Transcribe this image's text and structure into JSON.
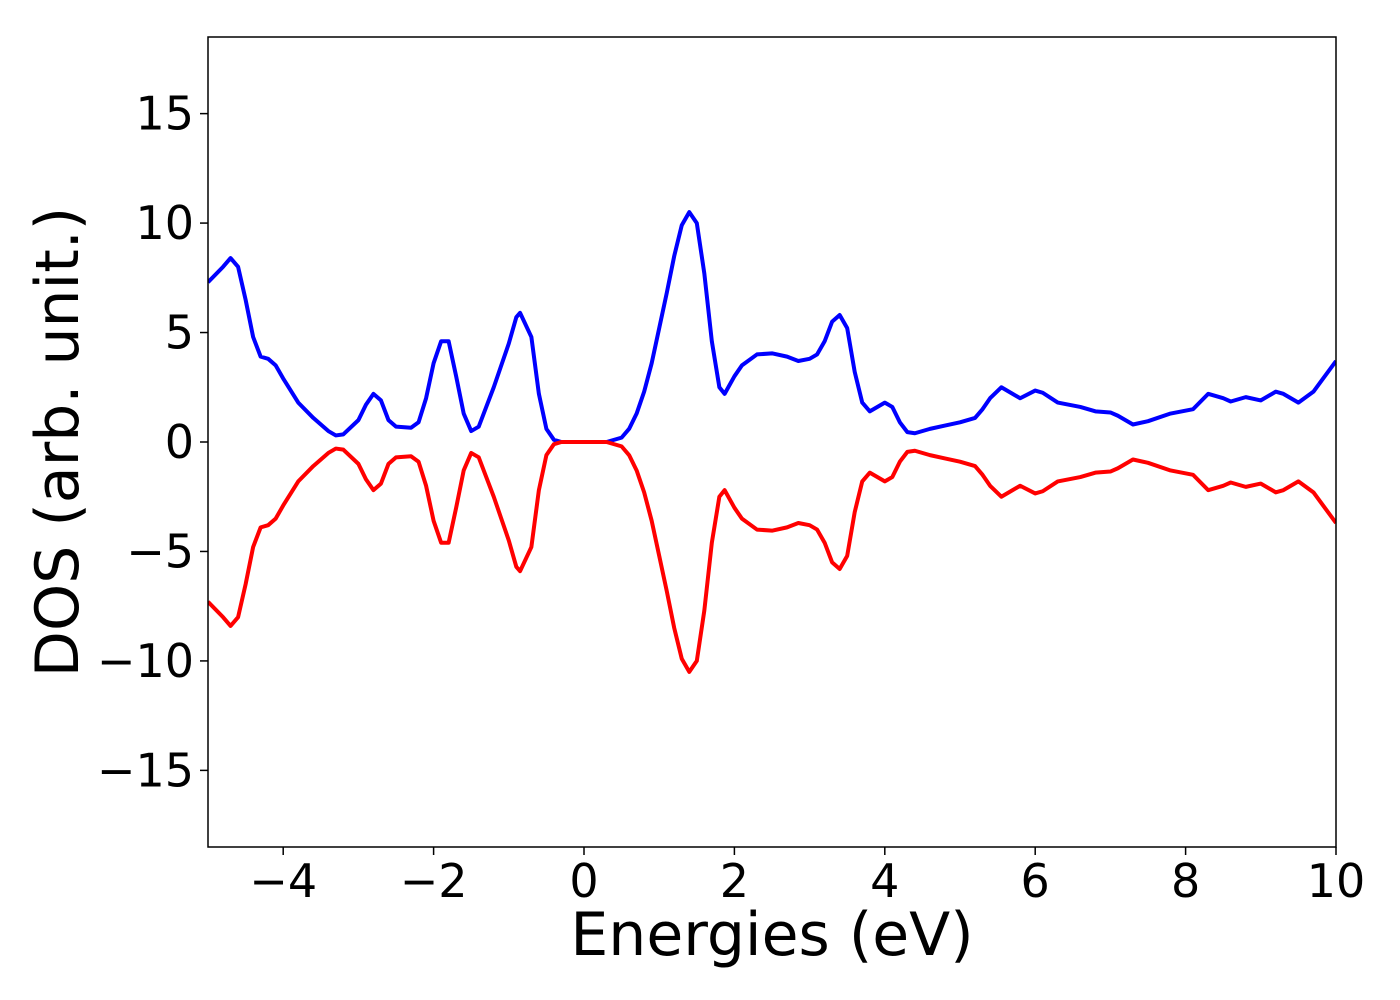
{
  "chart_data": {
    "type": "line",
    "x_label": "Energies (eV)",
    "y_label": "DOS (arb. unit.)",
    "x": [
      -5,
      -4.8,
      -4.7,
      -4.6,
      -4.5,
      -4.4,
      -4.3,
      -4.2,
      -4.1,
      -4.0,
      -3.8,
      -3.6,
      -3.4,
      -3.3,
      -3.2,
      -3.0,
      -2.9,
      -2.8,
      -2.7,
      -2.6,
      -2.5,
      -2.3,
      -2.2,
      -2.1,
      -2.0,
      -1.9,
      -1.8,
      -1.7,
      -1.6,
      -1.5,
      -1.4,
      -1.3,
      -1.2,
      -1.1,
      -1.0,
      -0.9,
      -0.85,
      -0.7,
      -0.6,
      -0.5,
      -0.4,
      -0.3,
      0,
      0.3,
      0.5,
      0.6,
      0.7,
      0.8,
      0.9,
      1.0,
      1.1,
      1.2,
      1.3,
      1.4,
      1.5,
      1.6,
      1.7,
      1.8,
      1.87,
      2.0,
      2.1,
      2.3,
      2.5,
      2.7,
      2.85,
      3.0,
      3.1,
      3.2,
      3.3,
      3.4,
      3.5,
      3.6,
      3.7,
      3.8,
      3.9,
      4.0,
      4.1,
      4.2,
      4.3,
      4.4,
      4.6,
      4.8,
      5.0,
      5.2,
      5.3,
      5.4,
      5.55,
      5.7,
      5.8,
      6.0,
      6.1,
      6.3,
      6.6,
      6.8,
      7.0,
      7.1,
      7.3,
      7.5,
      7.8,
      8.1,
      8.3,
      8.5,
      8.6,
      8.8,
      9.0,
      9.2,
      9.3,
      9.5,
      9.7,
      10.0
    ],
    "series": [
      {
        "color": "#0000ff",
        "values": [
          7.3,
          8.0,
          8.4,
          8.0,
          6.5,
          4.8,
          3.9,
          3.8,
          3.5,
          2.9,
          1.8,
          1.1,
          0.5,
          0.3,
          0.35,
          1.0,
          1.7,
          2.2,
          1.9,
          1.0,
          0.7,
          0.65,
          0.9,
          2.0,
          3.6,
          4.6,
          4.6,
          3.0,
          1.3,
          0.5,
          0.7,
          1.6,
          2.5,
          3.5,
          4.5,
          5.7,
          5.9,
          4.8,
          2.2,
          0.6,
          0.1,
          0.0,
          0,
          0.0,
          0.2,
          0.6,
          1.3,
          2.3,
          3.6,
          5.2,
          6.8,
          8.5,
          9.9,
          10.5,
          10.0,
          7.7,
          4.6,
          2.5,
          2.2,
          3.0,
          3.5,
          4.0,
          4.05,
          3.9,
          3.7,
          3.8,
          4.0,
          4.6,
          5.5,
          5.8,
          5.2,
          3.2,
          1.8,
          1.4,
          1.6,
          1.8,
          1.6,
          0.9,
          0.45,
          0.4,
          0.6,
          0.75,
          0.9,
          1.1,
          1.5,
          2.0,
          2.5,
          2.2,
          2.0,
          2.35,
          2.25,
          1.8,
          1.6,
          1.4,
          1.35,
          1.2,
          0.8,
          0.95,
          1.3,
          1.5,
          2.2,
          2.0,
          1.85,
          2.05,
          1.9,
          2.3,
          2.2,
          1.8,
          2.3,
          3.7
        ]
      },
      {
        "color": "#ff0000",
        "values": [
          -7.3,
          -8.0,
          -8.4,
          -8.0,
          -6.5,
          -4.8,
          -3.9,
          -3.8,
          -3.5,
          -2.9,
          -1.8,
          -1.1,
          -0.5,
          -0.3,
          -0.35,
          -1.0,
          -1.7,
          -2.2,
          -1.9,
          -1.0,
          -0.7,
          -0.65,
          -0.9,
          -2.0,
          -3.6,
          -4.6,
          -4.6,
          -3.0,
          -1.3,
          -0.5,
          -0.7,
          -1.6,
          -2.5,
          -3.5,
          -4.5,
          -5.7,
          -5.9,
          -4.8,
          -2.2,
          -0.6,
          -0.1,
          -0.0,
          0,
          -0.0,
          -0.2,
          -0.6,
          -1.3,
          -2.3,
          -3.6,
          -5.2,
          -6.8,
          -8.5,
          -9.9,
          -10.5,
          -10.0,
          -7.7,
          -4.6,
          -2.5,
          -2.2,
          -3.0,
          -3.5,
          -4.0,
          -4.05,
          -3.9,
          -3.7,
          -3.8,
          -4.0,
          -4.6,
          -5.5,
          -5.8,
          -5.2,
          -3.2,
          -1.8,
          -1.4,
          -1.6,
          -1.8,
          -1.6,
          -0.9,
          -0.45,
          -0.4,
          -0.6,
          -0.75,
          -0.9,
          -1.1,
          -1.5,
          -2.0,
          -2.5,
          -2.2,
          -2.0,
          -2.35,
          -2.25,
          -1.8,
          -1.6,
          -1.4,
          -1.35,
          -1.2,
          -0.8,
          -0.95,
          -1.3,
          -1.5,
          -2.2,
          -2.0,
          -1.85,
          -2.05,
          -1.9,
          -2.3,
          -2.2,
          -1.8,
          -2.3,
          -3.7
        ]
      }
    ],
    "xlim": [
      -5,
      10
    ],
    "xticks": [
      {
        "value": -4,
        "label": "−4"
      },
      {
        "value": -2,
        "label": "−2"
      },
      0,
      2,
      4,
      6,
      8,
      10
    ],
    "ylim": [
      -18.5,
      18.5
    ],
    "yticks": [
      {
        "value": -15,
        "label": "−15"
      },
      {
        "value": -10,
        "label": "−10"
      },
      {
        "value": -5,
        "label": "−5"
      },
      0,
      5,
      10,
      15
    ],
    "grid": false
  }
}
